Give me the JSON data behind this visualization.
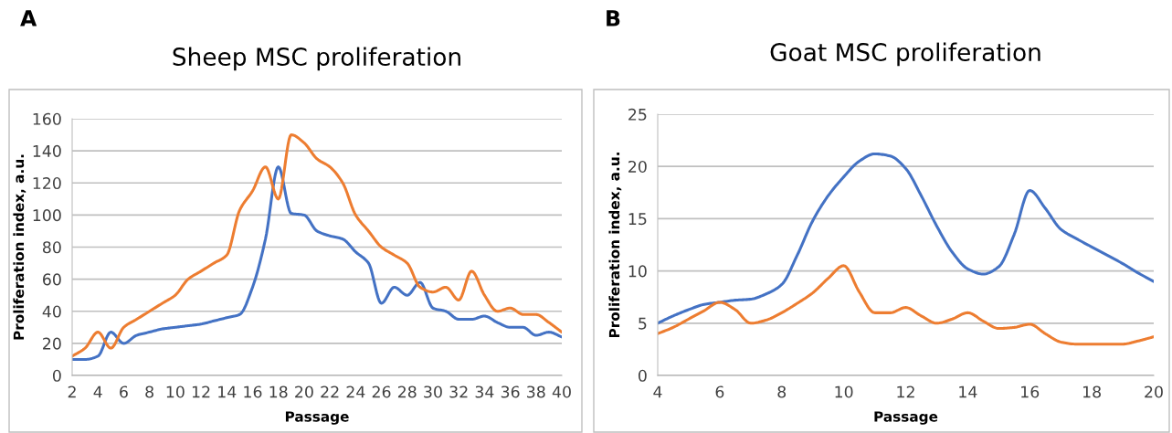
{
  "chart_data": [
    {
      "type": "line",
      "title": "Sheep MSC proliferation",
      "annotations": [
        "A"
      ],
      "xlabel": "Passage",
      "ylabel": "Proliferation index, a.u.",
      "x": [
        2,
        3,
        4,
        5,
        6,
        7,
        8,
        9,
        10,
        11,
        12,
        13,
        14,
        15,
        16,
        17,
        18,
        19,
        20,
        21,
        22,
        23,
        24,
        25,
        26,
        27,
        28,
        29,
        30,
        31,
        32,
        33,
        34,
        35,
        36,
        37,
        38,
        39,
        40
      ],
      "series": [
        {
          "color": "#4472c4",
          "values": [
            10,
            10,
            12,
            27,
            20,
            25,
            27,
            29,
            30,
            31,
            32,
            34,
            36,
            38,
            55,
            85,
            130,
            101,
            100,
            90,
            87,
            85,
            77,
            70,
            45,
            55,
            50,
            58,
            42,
            40,
            35,
            35,
            37,
            33,
            30,
            30,
            25,
            27,
            24
          ]
        },
        {
          "color": "#ed7d31",
          "values": [
            12,
            17,
            27,
            17,
            30,
            35,
            40,
            45,
            50,
            60,
            65,
            70,
            75,
            103,
            115,
            130,
            110,
            150,
            145,
            135,
            130,
            120,
            100,
            90,
            80,
            75,
            70,
            55,
            52,
            55,
            47,
            65,
            50,
            40,
            42,
            38,
            38,
            33,
            27
          ]
        }
      ],
      "xlim": [
        2,
        40
      ],
      "xticks": [
        2,
        4,
        6,
        8,
        10,
        12,
        14,
        16,
        18,
        20,
        22,
        24,
        26,
        28,
        30,
        32,
        34,
        36,
        38,
        40
      ],
      "ylim": [
        0,
        160
      ],
      "yticks": [
        0,
        20,
        40,
        60,
        80,
        100,
        120,
        140,
        160
      ],
      "grid": "y",
      "marker": "none",
      "line_style": "solid"
    },
    {
      "type": "line",
      "title": "Goat MSC proliferation",
      "annotations": [
        "B"
      ],
      "xlabel": "Passage",
      "ylabel": "Proliferation index, a.u.",
      "x": [
        4,
        4.5,
        5,
        5.5,
        6,
        6.5,
        7,
        7.5,
        8,
        8.5,
        9,
        9.5,
        10,
        10.5,
        11,
        11.5,
        12,
        12.5,
        13,
        13.5,
        14,
        14.5,
        15,
        15.5,
        16,
        16.5,
        17,
        17.5,
        18,
        18.5,
        19,
        19.5,
        20
      ],
      "series": [
        {
          "color": "#4472c4",
          "values": [
            5,
            5.7,
            6.3,
            6.8,
            7,
            7.2,
            7.3,
            7.8,
            8.7,
            11.5,
            14.8,
            17.2,
            19,
            20.5,
            21.2,
            21,
            19.8,
            17.2,
            14.3,
            11.8,
            10.2,
            9.7,
            10.4,
            13.5,
            17.7,
            16,
            14,
            13.1,
            12.3,
            11.5,
            10.7,
            9.8,
            9
          ]
        },
        {
          "color": "#ed7d31",
          "values": [
            4,
            4.6,
            5.4,
            6.2,
            7,
            6.3,
            5,
            5.3,
            6,
            6.9,
            7.9,
            9.3,
            10.5,
            8,
            6,
            6,
            6.5,
            5.7,
            5,
            5.4,
            6,
            5.2,
            4.5,
            4.6,
            4.9,
            4,
            3.2,
            3,
            3,
            3,
            3,
            3.3,
            3.7
          ]
        }
      ],
      "xlim": [
        4,
        20
      ],
      "xticks": [
        4,
        6,
        8,
        10,
        12,
        14,
        16,
        18,
        20
      ],
      "ylim": [
        0,
        25
      ],
      "yticks": [
        0,
        5,
        10,
        15,
        20,
        25
      ],
      "grid": "y",
      "marker": "none",
      "line_style": "solid"
    }
  ]
}
